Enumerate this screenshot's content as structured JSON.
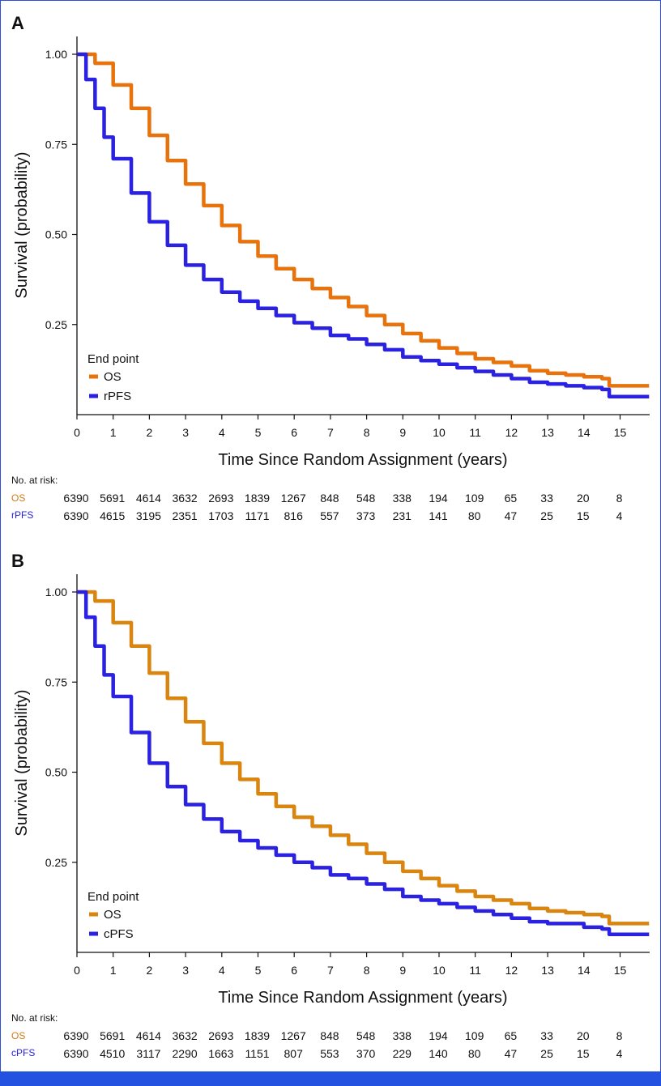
{
  "colors": {
    "os": "#e8730c",
    "os_b": "#d9850f",
    "pfs": "#2a22e0",
    "label_os": "#d07a16",
    "label_pfs": "#2a22e0",
    "border": "#2452e0"
  },
  "panels": [
    {
      "letter": "A",
      "risk_title": "No. at risk:",
      "risk_rows": [
        {
          "label": "OS",
          "values": [
            "6390",
            "5691",
            "4614",
            "3632",
            "2693",
            "1839",
            "1267",
            "848",
            "548",
            "338",
            "194",
            "109",
            "65",
            "33",
            "20",
            "8"
          ]
        },
        {
          "label": "rPFS",
          "values": [
            "6390",
            "4615",
            "3195",
            "2351",
            "1703",
            "1171",
            "816",
            "557",
            "373",
            "231",
            "141",
            "80",
            "47",
            "25",
            "15",
            "4"
          ]
        }
      ]
    },
    {
      "letter": "B",
      "risk_title": "No. at risk:",
      "risk_rows": [
        {
          "label": "OS",
          "values": [
            "6390",
            "5691",
            "4614",
            "3632",
            "2693",
            "1839",
            "1267",
            "848",
            "548",
            "338",
            "194",
            "109",
            "65",
            "33",
            "20",
            "8"
          ]
        },
        {
          "label": "cPFS",
          "values": [
            "6390",
            "4510",
            "3117",
            "2290",
            "1663",
            "1151",
            "807",
            "553",
            "370",
            "229",
            "140",
            "80",
            "47",
            "25",
            "15",
            "4"
          ]
        }
      ]
    }
  ],
  "chart_data": [
    {
      "type": "line",
      "title": "A",
      "xlabel": "Time Since Random Assignment (years)",
      "ylabel": "Survival (probability)",
      "xlim": [
        0,
        15.8
      ],
      "ylim": [
        0,
        1.05
      ],
      "xticks": [
        "0",
        "1",
        "2",
        "3",
        "4",
        "5",
        "6",
        "7",
        "8",
        "9",
        "10",
        "11",
        "12",
        "13",
        "14",
        "15"
      ],
      "yticks": [
        "1.00",
        "0.75",
        "0.50",
        "0.25"
      ],
      "ytick_values": [
        1.0,
        0.75,
        0.5,
        0.25
      ],
      "legend_title": "End point",
      "legend_position": "bottom-left",
      "series": [
        {
          "name": "OS",
          "x": [
            0,
            0.5,
            1,
            1.5,
            2,
            2.5,
            3,
            3.5,
            4,
            4.5,
            5,
            5.5,
            6,
            6.5,
            7,
            7.5,
            8,
            8.5,
            9,
            9.5,
            10,
            10.5,
            11,
            11.5,
            12,
            12.5,
            13,
            13.5,
            14,
            14.5,
            14.7,
            15,
            15.8
          ],
          "y": [
            1.0,
            0.975,
            0.915,
            0.85,
            0.775,
            0.705,
            0.64,
            0.58,
            0.525,
            0.48,
            0.44,
            0.405,
            0.375,
            0.35,
            0.325,
            0.3,
            0.275,
            0.25,
            0.225,
            0.205,
            0.185,
            0.17,
            0.155,
            0.145,
            0.135,
            0.122,
            0.115,
            0.11,
            0.105,
            0.1,
            0.08,
            0.08,
            0.08
          ]
        },
        {
          "name": "rPFS",
          "x": [
            0,
            0.25,
            0.5,
            0.75,
            1,
            1.5,
            2,
            2.5,
            3,
            3.5,
            4,
            4.5,
            5,
            5.5,
            6,
            6.5,
            7,
            7.5,
            8,
            8.5,
            9,
            9.5,
            10,
            10.5,
            11,
            11.5,
            12,
            12.5,
            13,
            13.5,
            14,
            14.5,
            14.7,
            15,
            15.8
          ],
          "y": [
            1.0,
            0.93,
            0.85,
            0.77,
            0.71,
            0.615,
            0.535,
            0.47,
            0.415,
            0.375,
            0.34,
            0.315,
            0.295,
            0.275,
            0.255,
            0.24,
            0.22,
            0.21,
            0.195,
            0.18,
            0.16,
            0.15,
            0.14,
            0.13,
            0.12,
            0.11,
            0.1,
            0.09,
            0.085,
            0.08,
            0.075,
            0.07,
            0.05,
            0.05,
            0.05
          ]
        }
      ]
    },
    {
      "type": "line",
      "title": "B",
      "xlabel": "Time Since Random Assignment (years)",
      "ylabel": "Survival (probability)",
      "xlim": [
        0,
        15.8
      ],
      "ylim": [
        0,
        1.05
      ],
      "xticks": [
        "0",
        "1",
        "2",
        "3",
        "4",
        "5",
        "6",
        "7",
        "8",
        "9",
        "10",
        "11",
        "12",
        "13",
        "14",
        "15"
      ],
      "yticks": [
        "1.00",
        "0.75",
        "0.50",
        "0.25"
      ],
      "ytick_values": [
        1.0,
        0.75,
        0.5,
        0.25
      ],
      "legend_title": "End point",
      "legend_position": "bottom-left",
      "series": [
        {
          "name": "OS",
          "x": [
            0,
            0.5,
            1,
            1.5,
            2,
            2.5,
            3,
            3.5,
            4,
            4.5,
            5,
            5.5,
            6,
            6.5,
            7,
            7.5,
            8,
            8.5,
            9,
            9.5,
            10,
            10.5,
            11,
            11.5,
            12,
            12.5,
            13,
            13.5,
            14,
            14.5,
            14.7,
            15,
            15.8
          ],
          "y": [
            1.0,
            0.975,
            0.915,
            0.85,
            0.775,
            0.705,
            0.64,
            0.58,
            0.525,
            0.48,
            0.44,
            0.405,
            0.375,
            0.35,
            0.325,
            0.3,
            0.275,
            0.25,
            0.225,
            0.205,
            0.185,
            0.17,
            0.155,
            0.145,
            0.135,
            0.122,
            0.115,
            0.11,
            0.105,
            0.1,
            0.08,
            0.08,
            0.08
          ]
        },
        {
          "name": "cPFS",
          "x": [
            0,
            0.25,
            0.5,
            0.75,
            1,
            1.5,
            2,
            2.5,
            3,
            3.5,
            4,
            4.5,
            5,
            5.5,
            6,
            6.5,
            7,
            7.5,
            8,
            8.5,
            9,
            9.5,
            10,
            10.5,
            11,
            11.5,
            12,
            12.5,
            13,
            13.5,
            14,
            14.5,
            14.7,
            15,
            15.8
          ],
          "y": [
            1.0,
            0.93,
            0.85,
            0.77,
            0.71,
            0.61,
            0.525,
            0.46,
            0.41,
            0.37,
            0.335,
            0.31,
            0.29,
            0.27,
            0.25,
            0.235,
            0.215,
            0.205,
            0.19,
            0.175,
            0.155,
            0.145,
            0.135,
            0.125,
            0.115,
            0.105,
            0.095,
            0.085,
            0.08,
            0.08,
            0.07,
            0.065,
            0.05,
            0.05,
            0.05
          ]
        }
      ]
    }
  ]
}
